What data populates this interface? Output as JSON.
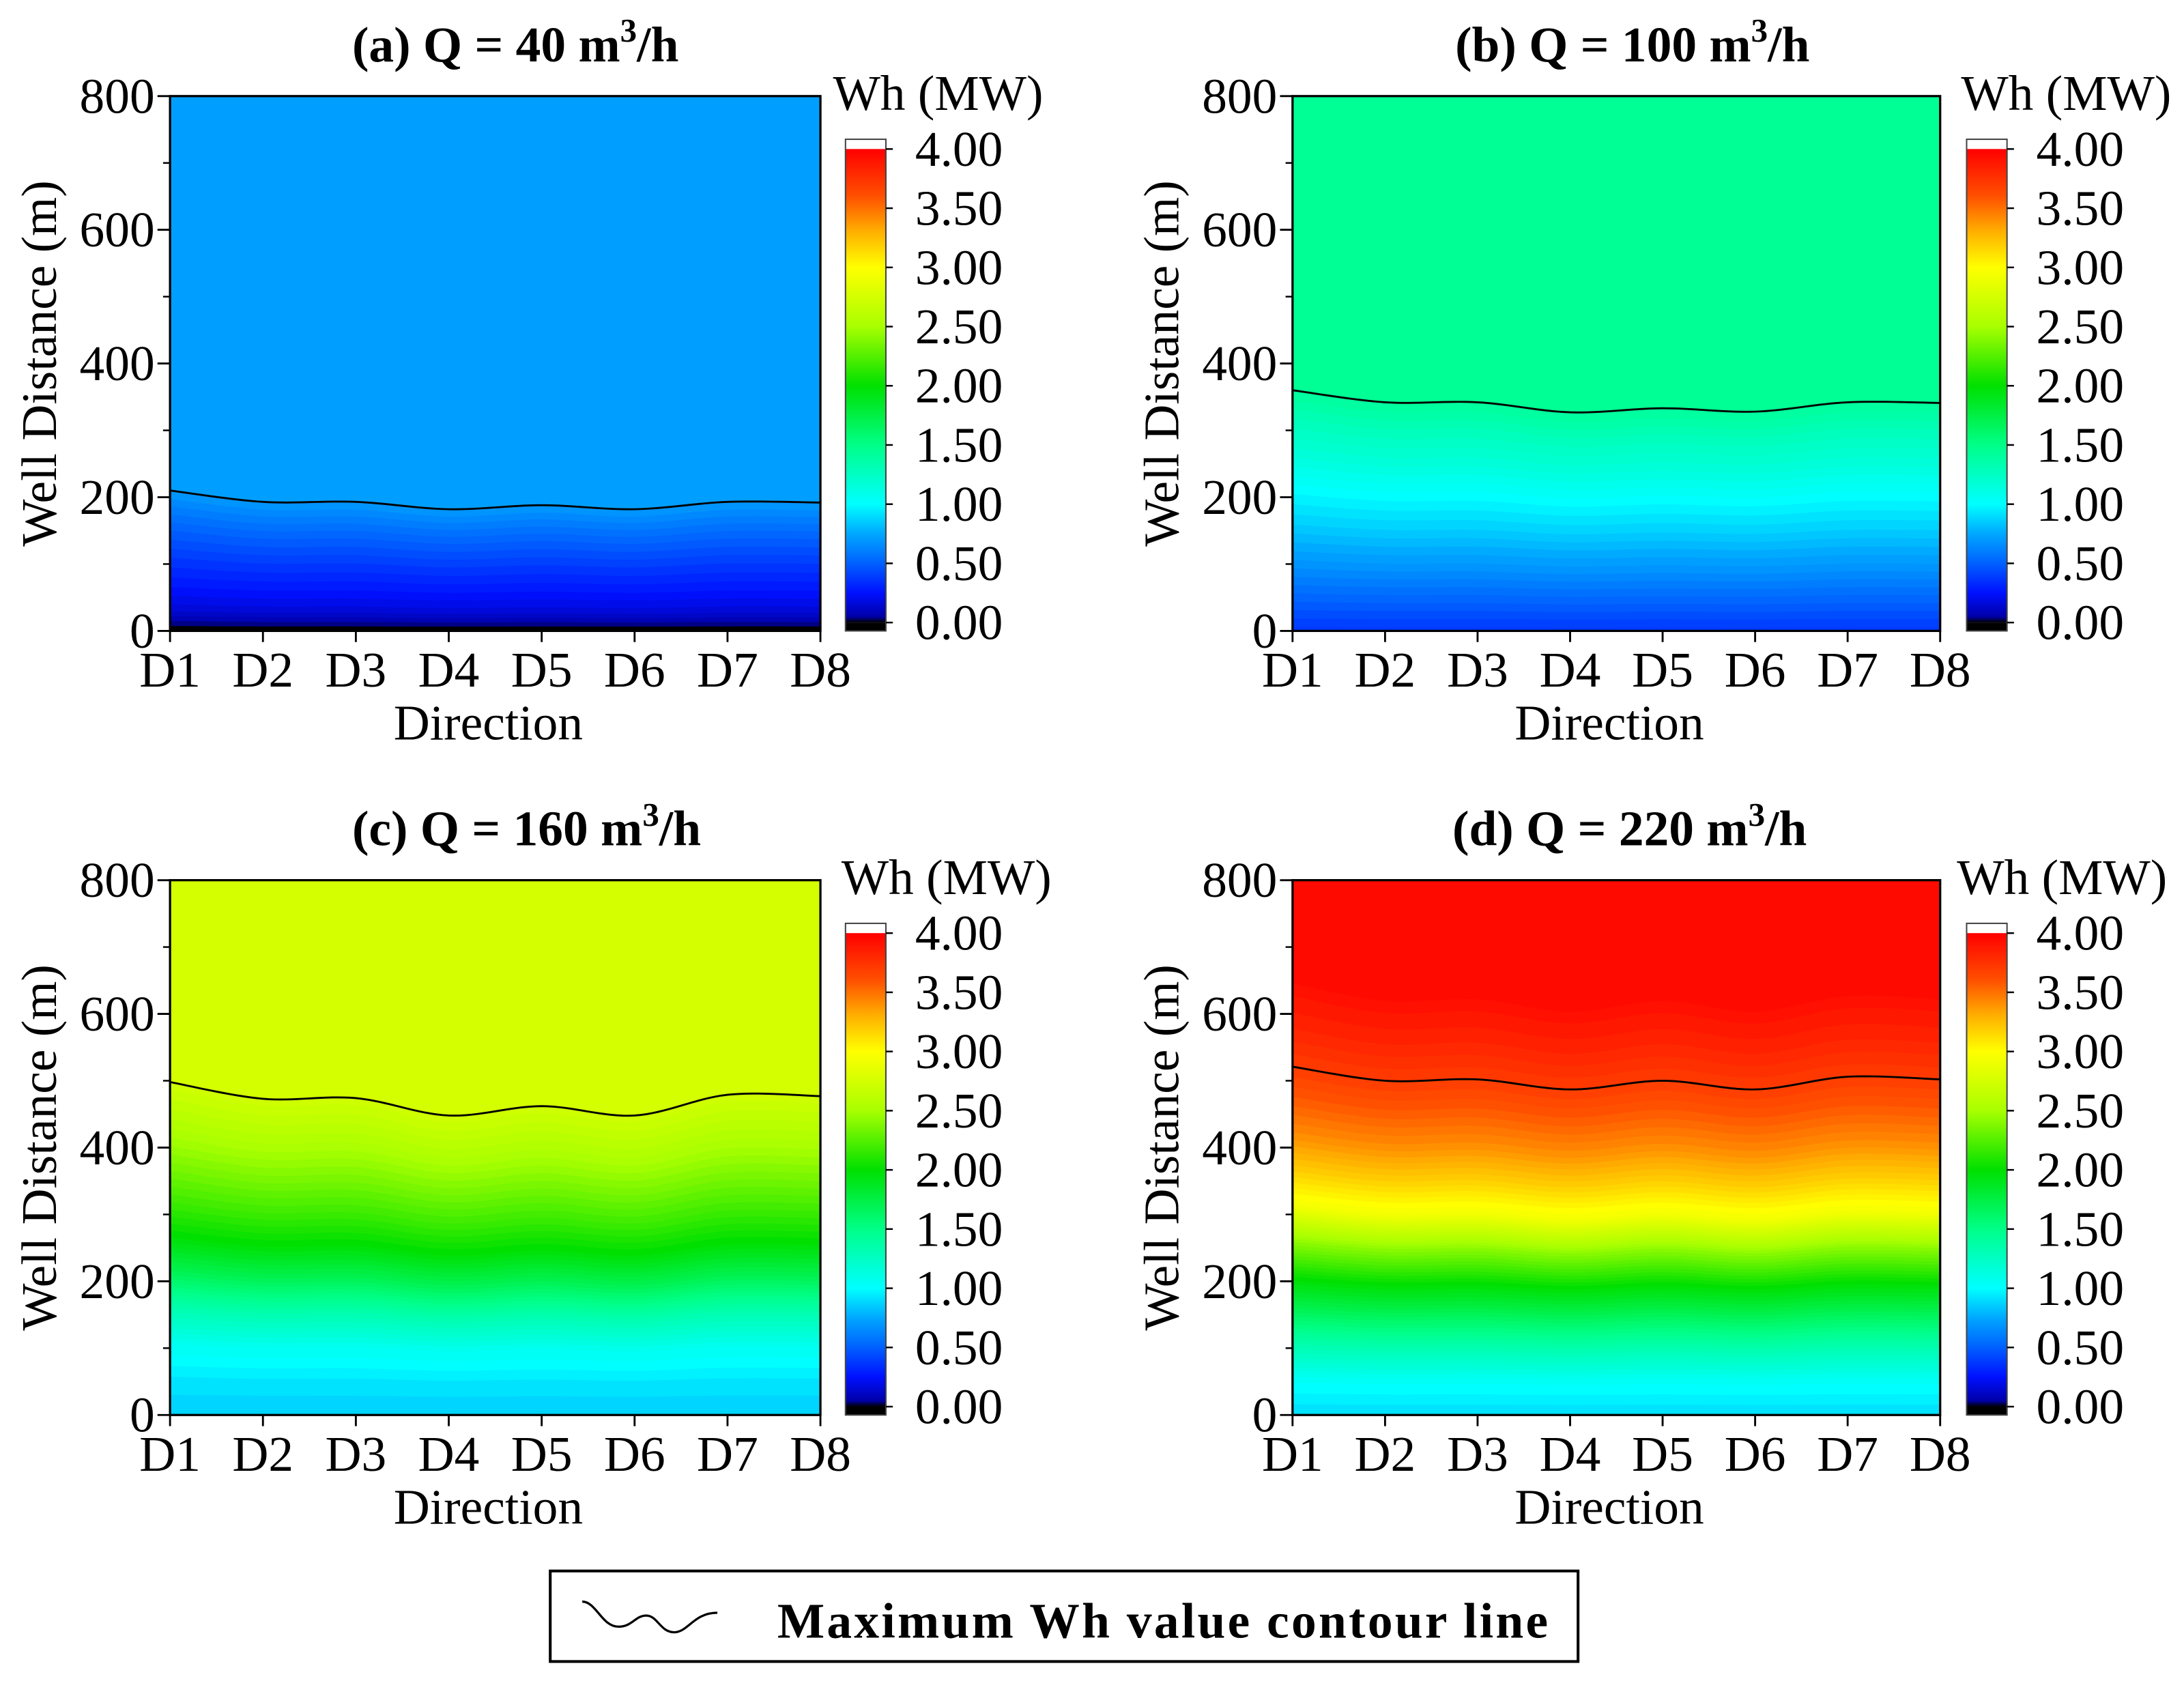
{
  "legend": {
    "label": "Maximum Wh value contour line"
  },
  "colormap": [
    {
      "value": 0.0,
      "color": "#000000"
    },
    {
      "value": 0.05,
      "color": "#0000a8"
    },
    {
      "value": 0.25,
      "color": "#0010ff"
    },
    {
      "value": 0.5,
      "color": "#0060ff"
    },
    {
      "value": 0.75,
      "color": "#00a8ff"
    },
    {
      "value": 1.0,
      "color": "#00ffff"
    },
    {
      "value": 1.5,
      "color": "#00ff88"
    },
    {
      "value": 2.0,
      "color": "#00e000"
    },
    {
      "value": 2.5,
      "color": "#a8ff00"
    },
    {
      "value": 3.0,
      "color": "#ffff00"
    },
    {
      "value": 3.3,
      "color": "#ffb000"
    },
    {
      "value": 3.6,
      "color": "#ff5000"
    },
    {
      "value": 4.0,
      "color": "#ff0000"
    }
  ],
  "chart_data": [
    {
      "type": "heatmap",
      "title": {
        "main": "(a) Q = 40 m",
        "sup": "3",
        "end": "/h"
      },
      "xlabel": "Direction",
      "ylabel": "Well Distance (m)",
      "categories": [
        "D1",
        "D2",
        "D3",
        "D4",
        "D5",
        "D6",
        "D7",
        "D8"
      ],
      "ylim": [
        0,
        800
      ],
      "yticks": [
        0,
        200,
        400,
        600,
        800
      ],
      "colorbar": {
        "label": "Wh (MW)",
        "range": [
          0,
          4
        ],
        "ticks": [
          "0.00",
          "0.50",
          "1.00",
          "1.50",
          "2.00",
          "2.50",
          "3.00",
          "3.50",
          "4.00"
        ]
      },
      "max_wh_contour_line": [
        210,
        193,
        193,
        182,
        188,
        182,
        193,
        192
      ],
      "wh_profile": {
        "well_distance": [
          0,
          10,
          30,
          60,
          100,
          140,
          170,
          190,
          800
        ],
        "wh": [
          0.0,
          0.06,
          0.18,
          0.28,
          0.4,
          0.53,
          0.64,
          0.72,
          0.72
        ]
      }
    },
    {
      "type": "heatmap",
      "title": {
        "main": "(b) Q = 100 m",
        "sup": "3",
        "end": "/h"
      },
      "xlabel": "Direction",
      "ylabel": "Well Distance (m)",
      "categories": [
        "D1",
        "D2",
        "D3",
        "D4",
        "D5",
        "D6",
        "D7",
        "D8"
      ],
      "ylim": [
        0,
        800
      ],
      "yticks": [
        0,
        200,
        400,
        600,
        800
      ],
      "colorbar": {
        "label": "Wh (MW)",
        "range": [
          0,
          4
        ],
        "ticks": [
          "0.00",
          "0.50",
          "1.00",
          "1.50",
          "2.00",
          "2.50",
          "3.00",
          "3.50",
          "4.00"
        ]
      },
      "max_wh_contour_line": [
        360,
        342,
        342,
        327,
        333,
        328,
        342,
        341
      ],
      "wh_profile": {
        "well_distance": [
          0,
          50,
          100,
          150,
          200,
          250,
          300,
          340,
          800
        ],
        "wh": [
          0.38,
          0.55,
          0.72,
          0.88,
          1.02,
          1.18,
          1.32,
          1.45,
          1.45
        ]
      }
    },
    {
      "type": "heatmap",
      "title": {
        "main": "(c) Q = 160 m",
        "sup": "3",
        "end": "/h"
      },
      "xlabel": "Direction",
      "ylabel": "Well Distance (m)",
      "categories": [
        "D1",
        "D2",
        "D3",
        "D4",
        "D5",
        "D6",
        "D7",
        "D8"
      ],
      "ylim": [
        0,
        800
      ],
      "yticks": [
        0,
        200,
        400,
        600,
        800
      ],
      "colorbar": {
        "label": "Wh (MW)",
        "range": [
          0,
          4
        ],
        "ticks": [
          "0.00",
          "0.50",
          "1.00",
          "1.50",
          "2.00",
          "2.50",
          "3.00",
          "3.50",
          "4.00"
        ]
      },
      "max_wh_contour_line": [
        498,
        473,
        474,
        448,
        462,
        448,
        479,
        477
      ],
      "wh_profile": {
        "well_distance": [
          0,
          50,
          100,
          150,
          200,
          250,
          300,
          350,
          400,
          470,
          800
        ],
        "wh": [
          0.88,
          0.95,
          1.08,
          1.35,
          1.7,
          2.0,
          2.2,
          2.38,
          2.55,
          2.75,
          2.75
        ]
      }
    },
    {
      "type": "heatmap",
      "title": {
        "main": "(d) Q = 220 m",
        "sup": "3",
        "end": "/h"
      },
      "xlabel": "Direction",
      "ylabel": "Well Distance (m)",
      "categories": [
        "D1",
        "D2",
        "D3",
        "D4",
        "D5",
        "D6",
        "D7",
        "D8"
      ],
      "ylim": [
        0,
        800
      ],
      "yticks": [
        0,
        200,
        400,
        600,
        800
      ],
      "colorbar": {
        "label": "Wh (MW)",
        "range": [
          0,
          4
        ],
        "ticks": [
          "0.00",
          "0.50",
          "1.00",
          "1.50",
          "2.00",
          "2.50",
          "3.00",
          "3.50",
          "4.00"
        ]
      },
      "max_wh_contour_line": [
        521,
        500,
        502,
        487,
        500,
        487,
        506,
        502
      ],
      "wh_profile": {
        "well_distance": [
          0,
          50,
          100,
          150,
          200,
          250,
          300,
          350,
          400,
          450,
          500,
          560,
          620,
          800
        ],
        "wh": [
          0.92,
          1.05,
          1.35,
          1.7,
          2.05,
          2.45,
          2.95,
          3.2,
          3.42,
          3.58,
          3.72,
          3.85,
          3.95,
          3.95
        ]
      }
    }
  ]
}
